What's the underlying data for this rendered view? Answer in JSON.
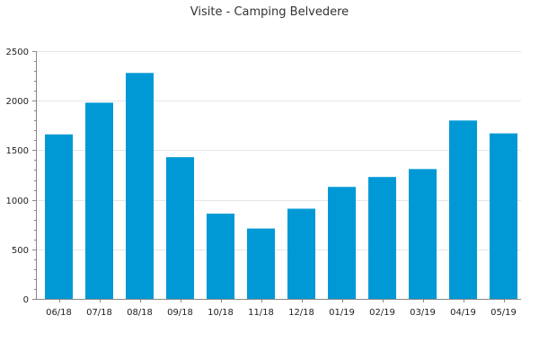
{
  "chart_data": {
    "type": "bar",
    "title": "Visite - Camping Belvedere",
    "xlabel": "",
    "ylabel": "",
    "categories": [
      "06/18",
      "07/18",
      "08/18",
      "09/18",
      "10/18",
      "11/18",
      "12/18",
      "01/19",
      "02/19",
      "03/19",
      "04/19",
      "05/19"
    ],
    "values": [
      1660,
      1980,
      2280,
      1430,
      860,
      710,
      910,
      1130,
      1230,
      1310,
      1800,
      1670
    ],
    "ylim": [
      0,
      2500
    ],
    "yticks": [
      0,
      500,
      1000,
      1500,
      2000,
      2500
    ],
    "grid": true,
    "legend": "none",
    "bar_color": "#0099d5"
  }
}
